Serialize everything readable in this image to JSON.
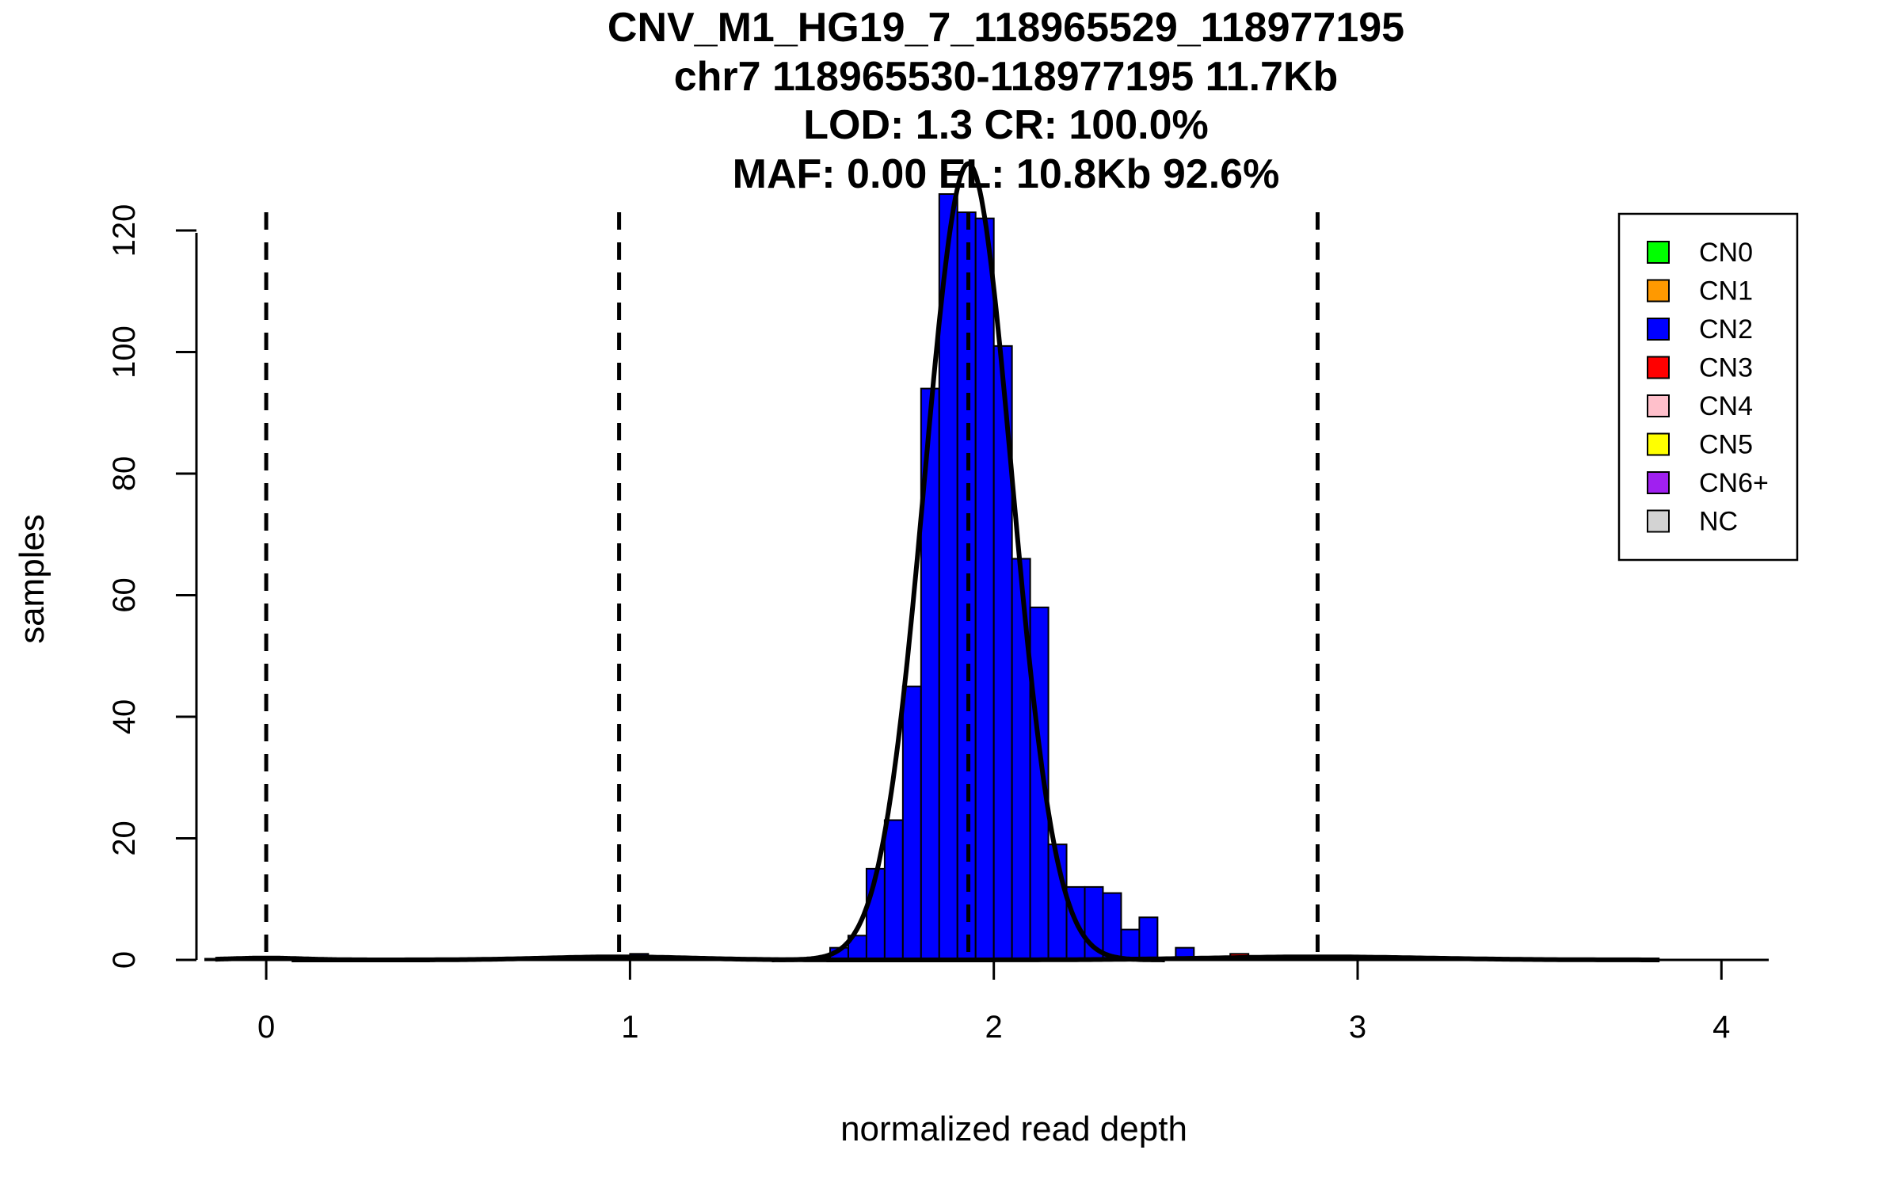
{
  "chart_data": {
    "type": "histogram",
    "title_lines": [
      "CNV_M1_HG19_7_118965529_118977195",
      "chr7 118965530-118977195 11.7Kb",
      "LOD: 1.3 CR: 100.0%",
      "MAF: 0.00 EL: 10.8Kb 92.6%"
    ],
    "xlabel": "normalized read depth",
    "ylabel": "samples",
    "xlim": [
      -0.17,
      4.13
    ],
    "ylim": [
      0,
      126
    ],
    "x_ticks": [
      0,
      1,
      2,
      3,
      4
    ],
    "y_ticks": [
      0,
      20,
      40,
      60,
      80,
      100,
      120
    ],
    "bin_width": 0.05,
    "colors": {
      "CN0": "#00ff00",
      "CN1": "#ff9900",
      "CN2": "#0000ff",
      "CN3": "#ff0000",
      "CN4": "#ffc0cb",
      "CN5": "#ffff00",
      "CN6+": "#a020f0",
      "NC": "#d3d3d3"
    },
    "bins": [
      {
        "x0": 1.0,
        "count": 1,
        "class": "CN2"
      },
      {
        "x0": 1.55,
        "count": 2,
        "class": "CN2"
      },
      {
        "x0": 1.6,
        "count": 4,
        "class": "CN2"
      },
      {
        "x0": 1.65,
        "count": 15,
        "class": "CN2"
      },
      {
        "x0": 1.7,
        "count": 23,
        "class": "CN2"
      },
      {
        "x0": 1.75,
        "count": 45,
        "class": "CN2"
      },
      {
        "x0": 1.8,
        "count": 94,
        "class": "CN2"
      },
      {
        "x0": 1.85,
        "count": 126,
        "class": "CN2"
      },
      {
        "x0": 1.9,
        "count": 123,
        "class": "CN2"
      },
      {
        "x0": 1.95,
        "count": 122,
        "class": "CN2"
      },
      {
        "x0": 2.0,
        "count": 101,
        "class": "CN2"
      },
      {
        "x0": 2.05,
        "count": 66,
        "class": "CN2"
      },
      {
        "x0": 2.1,
        "count": 58,
        "class": "CN2"
      },
      {
        "x0": 2.15,
        "count": 19,
        "class": "CN2"
      },
      {
        "x0": 2.2,
        "count": 12,
        "class": "CN2"
      },
      {
        "x0": 2.25,
        "count": 12,
        "class": "CN2"
      },
      {
        "x0": 2.3,
        "count": 11,
        "class": "CN2"
      },
      {
        "x0": 2.35,
        "count": 5,
        "class": "CN2"
      },
      {
        "x0": 2.4,
        "count": 7,
        "class": "CN2"
      },
      {
        "x0": 2.5,
        "count": 2,
        "class": "CN2"
      },
      {
        "x0": 2.65,
        "count": 1,
        "class": "CN3"
      }
    ],
    "threshold_lines": [
      0.0,
      0.97,
      1.93,
      2.89
    ],
    "fit_curves": [
      {
        "component": "CN0",
        "mean": 0.0,
        "sd": 0.1,
        "peak": 0.3
      },
      {
        "component": "CN1",
        "mean": 0.97,
        "sd": 0.2,
        "peak": 0.5
      },
      {
        "component": "CN2",
        "mean": 1.93,
        "sd": 0.12,
        "peak": 131
      },
      {
        "component": "CN3",
        "mean": 2.89,
        "sd": 0.3,
        "peak": 0.5
      }
    ],
    "legend": {
      "position": "top-right",
      "entries": [
        "CN0",
        "CN1",
        "CN2",
        "CN3",
        "CN4",
        "CN5",
        "CN6+",
        "NC"
      ]
    }
  }
}
